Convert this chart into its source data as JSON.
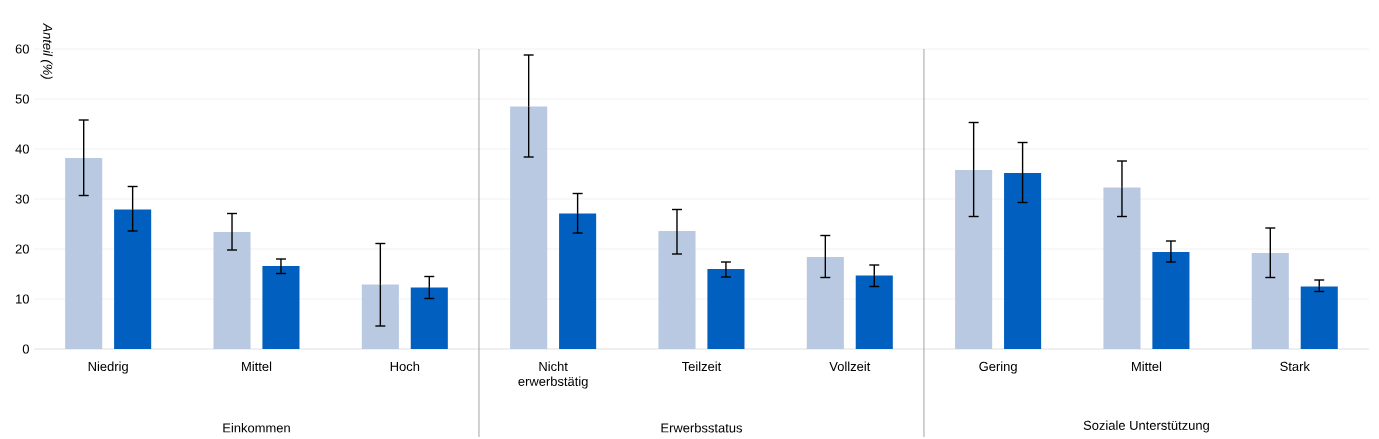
{
  "chart_data": {
    "type": "bar",
    "ylabel": "Anteil (%)",
    "categories": [
      "Niedrig",
      "Mittel",
      "Hoch",
      "Nicht erwerbstätig",
      "Teilzeit",
      "Vollzeit",
      "Gering",
      "Mittel",
      "Stark"
    ],
    "series": [
      {
        "color": "#b8c9e1",
        "values": [
          38.2,
          23.4,
          12.9,
          48.5,
          23.6,
          18.4,
          35.8,
          32.3,
          19.2
        ],
        "errors": [
          [
            30.7,
            45.8
          ],
          [
            19.8,
            27.1
          ],
          [
            4.6,
            21.1
          ],
          [
            38.4,
            58.8
          ],
          [
            19.0,
            27.9
          ],
          [
            14.3,
            22.7
          ],
          [
            26.5,
            45.3
          ],
          [
            26.5,
            37.6
          ],
          [
            14.3,
            24.2
          ]
        ]
      },
      {
        "color": "#005fbf",
        "values": [
          27.9,
          16.6,
          12.3,
          27.1,
          16.0,
          14.7,
          35.2,
          19.4,
          12.5
        ],
        "errors": [
          [
            23.6,
            32.5
          ],
          [
            15.1,
            18.0
          ],
          [
            10.1,
            14.5
          ],
          [
            23.2,
            31.1
          ],
          [
            14.4,
            17.4
          ],
          [
            12.5,
            16.8
          ],
          [
            29.3,
            41.3
          ],
          [
            17.4,
            21.6
          ],
          [
            11.5,
            13.8
          ]
        ]
      }
    ],
    "ylim": [
      0,
      60
    ],
    "yticks": [
      0,
      10,
      20,
      30,
      40,
      50,
      60
    ],
    "grid": "y",
    "legend": false,
    "annotations": [
      "Einkommen",
      "Erwerbsstatus",
      "Soziale Unterstützung"
    ]
  }
}
